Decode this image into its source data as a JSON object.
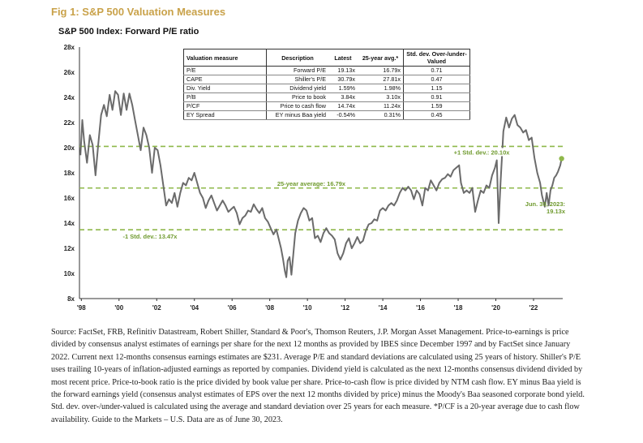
{
  "figure_title": "Fig 1: S&P 500 Valuation Measures",
  "chart_data": {
    "type": "line",
    "title": "S&P 500 Index: Forward P/E ratio",
    "xlabel": "",
    "ylabel": "",
    "x_tick_labels": [
      "'98",
      "'00",
      "'02",
      "'04",
      "'06",
      "'08",
      "'10",
      "'12",
      "'14",
      "'16",
      "'18",
      "'20",
      "'22"
    ],
    "y_tick_labels": [
      "8x",
      "10x",
      "12x",
      "14x",
      "16x",
      "18x",
      "20x",
      "22x",
      "24x",
      "26x",
      "28x"
    ],
    "ylim": [
      8,
      28
    ],
    "xlim": [
      1997.9,
      2023.55
    ],
    "grid": false,
    "series": [
      {
        "values": [
          [
            1997.95,
            19.4
          ],
          [
            1998.05,
            22.2
          ],
          [
            1998.15,
            20.5
          ],
          [
            1998.3,
            18.8
          ],
          [
            1998.45,
            21.0
          ],
          [
            1998.6,
            20.2
          ],
          [
            1998.75,
            17.8
          ],
          [
            1998.9,
            20.3
          ],
          [
            1999.05,
            22.6
          ],
          [
            1999.2,
            23.4
          ],
          [
            1999.35,
            22.5
          ],
          [
            1999.5,
            24.2
          ],
          [
            1999.65,
            23.0
          ],
          [
            1999.8,
            24.5
          ],
          [
            1999.95,
            24.2
          ],
          [
            2000.1,
            22.6
          ],
          [
            2000.25,
            24.3
          ],
          [
            2000.4,
            23.0
          ],
          [
            2000.55,
            24.3
          ],
          [
            2000.7,
            23.4
          ],
          [
            2000.85,
            22.2
          ],
          [
            2001.0,
            21.0
          ],
          [
            2001.15,
            19.8
          ],
          [
            2001.3,
            21.6
          ],
          [
            2001.45,
            21.0
          ],
          [
            2001.6,
            20.0
          ],
          [
            2001.75,
            18.0
          ],
          [
            2001.9,
            20.0
          ],
          [
            2002.05,
            19.8
          ],
          [
            2002.2,
            18.6
          ],
          [
            2002.35,
            17.0
          ],
          [
            2002.5,
            15.4
          ],
          [
            2002.65,
            15.9
          ],
          [
            2002.8,
            15.6
          ],
          [
            2002.95,
            16.4
          ],
          [
            2003.1,
            15.3
          ],
          [
            2003.25,
            16.4
          ],
          [
            2003.4,
            17.2
          ],
          [
            2003.55,
            17.0
          ],
          [
            2003.7,
            17.6
          ],
          [
            2003.85,
            17.4
          ],
          [
            2004.0,
            18.0
          ],
          [
            2004.15,
            17.2
          ],
          [
            2004.3,
            16.4
          ],
          [
            2004.45,
            16.0
          ],
          [
            2004.6,
            15.2
          ],
          [
            2004.75,
            15.8
          ],
          [
            2004.9,
            16.2
          ],
          [
            2005.05,
            15.6
          ],
          [
            2005.2,
            15.0
          ],
          [
            2005.35,
            15.4
          ],
          [
            2005.5,
            15.8
          ],
          [
            2005.65,
            15.4
          ],
          [
            2005.8,
            14.9
          ],
          [
            2005.95,
            15.1
          ],
          [
            2006.1,
            15.3
          ],
          [
            2006.25,
            14.8
          ],
          [
            2006.4,
            13.9
          ],
          [
            2006.55,
            14.4
          ],
          [
            2006.7,
            14.6
          ],
          [
            2006.85,
            15.0
          ],
          [
            2007.0,
            14.9
          ],
          [
            2007.15,
            15.5
          ],
          [
            2007.3,
            15.1
          ],
          [
            2007.45,
            14.8
          ],
          [
            2007.6,
            15.2
          ],
          [
            2007.75,
            14.4
          ],
          [
            2007.9,
            14.1
          ],
          [
            2008.05,
            13.6
          ],
          [
            2008.2,
            13.1
          ],
          [
            2008.35,
            13.5
          ],
          [
            2008.5,
            12.6
          ],
          [
            2008.6,
            12.0
          ],
          [
            2008.7,
            11.2
          ],
          [
            2008.8,
            10.2
          ],
          [
            2008.88,
            9.7
          ],
          [
            2008.95,
            11.0
          ],
          [
            2009.05,
            11.3
          ],
          [
            2009.15,
            9.9
          ],
          [
            2009.25,
            11.5
          ],
          [
            2009.35,
            13.2
          ],
          [
            2009.5,
            14.2
          ],
          [
            2009.65,
            14.8
          ],
          [
            2009.8,
            15.2
          ],
          [
            2009.95,
            15.0
          ],
          [
            2010.1,
            14.2
          ],
          [
            2010.25,
            14.4
          ],
          [
            2010.4,
            12.8
          ],
          [
            2010.55,
            13.0
          ],
          [
            2010.7,
            12.5
          ],
          [
            2010.85,
            13.2
          ],
          [
            2011.0,
            13.6
          ],
          [
            2011.15,
            13.2
          ],
          [
            2011.3,
            13.0
          ],
          [
            2011.45,
            12.7
          ],
          [
            2011.6,
            11.6
          ],
          [
            2011.75,
            11.1
          ],
          [
            2011.9,
            11.6
          ],
          [
            2012.05,
            12.4
          ],
          [
            2012.2,
            12.8
          ],
          [
            2012.35,
            12.0
          ],
          [
            2012.5,
            12.4
          ],
          [
            2012.65,
            12.9
          ],
          [
            2012.8,
            12.4
          ],
          [
            2012.95,
            12.6
          ],
          [
            2013.1,
            13.4
          ],
          [
            2013.25,
            13.9
          ],
          [
            2013.4,
            14.0
          ],
          [
            2013.55,
            14.3
          ],
          [
            2013.7,
            14.2
          ],
          [
            2013.85,
            15.0
          ],
          [
            2014.0,
            15.2
          ],
          [
            2014.15,
            15.0
          ],
          [
            2014.3,
            15.4
          ],
          [
            2014.45,
            15.6
          ],
          [
            2014.6,
            15.4
          ],
          [
            2014.75,
            15.8
          ],
          [
            2014.9,
            16.4
          ],
          [
            2015.05,
            16.8
          ],
          [
            2015.2,
            16.6
          ],
          [
            2015.35,
            16.9
          ],
          [
            2015.5,
            16.6
          ],
          [
            2015.65,
            15.9
          ],
          [
            2015.8,
            16.6
          ],
          [
            2015.95,
            16.3
          ],
          [
            2016.1,
            15.4
          ],
          [
            2016.25,
            16.8
          ],
          [
            2016.4,
            16.6
          ],
          [
            2016.55,
            17.4
          ],
          [
            2016.7,
            17.0
          ],
          [
            2016.85,
            16.6
          ],
          [
            2017.0,
            17.2
          ],
          [
            2017.15,
            17.5
          ],
          [
            2017.3,
            17.6
          ],
          [
            2017.45,
            17.9
          ],
          [
            2017.6,
            17.7
          ],
          [
            2017.75,
            18.2
          ],
          [
            2017.9,
            18.4
          ],
          [
            2018.05,
            18.6
          ],
          [
            2018.15,
            17.2
          ],
          [
            2018.3,
            16.4
          ],
          [
            2018.45,
            16.6
          ],
          [
            2018.6,
            16.4
          ],
          [
            2018.75,
            16.8
          ],
          [
            2018.9,
            14.9
          ],
          [
            2019.05,
            15.8
          ],
          [
            2019.2,
            16.6
          ],
          [
            2019.35,
            16.4
          ],
          [
            2019.5,
            17.0
          ],
          [
            2019.65,
            16.8
          ],
          [
            2019.8,
            17.8
          ],
          [
            2019.95,
            18.4
          ],
          [
            2020.05,
            19.0
          ],
          [
            2020.15,
            14.0
          ],
          [
            2020.25,
            17.2
          ],
          [
            2020.4,
            21.3
          ],
          [
            2020.55,
            22.4
          ],
          [
            2020.7,
            21.6
          ],
          [
            2020.85,
            22.3
          ],
          [
            2021.0,
            22.6
          ],
          [
            2021.15,
            21.8
          ],
          [
            2021.3,
            21.6
          ],
          [
            2021.45,
            21.2
          ],
          [
            2021.6,
            21.4
          ],
          [
            2021.75,
            20.6
          ],
          [
            2021.9,
            20.8
          ],
          [
            2022.05,
            19.2
          ],
          [
            2022.2,
            18.0
          ],
          [
            2022.35,
            17.2
          ],
          [
            2022.45,
            16.2
          ],
          [
            2022.6,
            15.3
          ],
          [
            2022.7,
            16.4
          ],
          [
            2022.8,
            15.4
          ],
          [
            2022.9,
            16.6
          ],
          [
            2023.0,
            17.0
          ],
          [
            2023.1,
            17.6
          ],
          [
            2023.2,
            17.8
          ],
          [
            2023.3,
            18.1
          ],
          [
            2023.42,
            18.6
          ],
          [
            2023.49,
            19.13
          ]
        ]
      }
    ],
    "reference_lines": [
      {
        "value": 20.1,
        "label": "+1 Std. dev.: 20.10x"
      },
      {
        "value": 16.79,
        "label": "25-year average: 16.79x"
      },
      {
        "value": 13.47,
        "label": "-1 Std. dev.: 13.47x"
      }
    ],
    "end_point": {
      "x": 2023.49,
      "y": 19.13,
      "label_line1": "Jun. 30, 2023:",
      "label_line2": "19.13x"
    },
    "colors": {
      "line": "#6b6b6b",
      "reference": "#8fb84a",
      "label_green": "#6f9a2e",
      "title_gold": "#c9a24a"
    },
    "table": {
      "headers": [
        "Valuation measure",
        "Description",
        "Latest",
        "25-year avg.*",
        "Std. dev. Over-/under-Valued"
      ],
      "rows": [
        [
          "P/E",
          "Forward P/E",
          "19.13x",
          "16.79x",
          "0.71"
        ],
        [
          "CAPE",
          "Shiller's P/E",
          "30.79x",
          "27.81x",
          "0.47"
        ],
        [
          "Div. Yield",
          "Dividend yield",
          "1.59%",
          "1.98%",
          "1.15"
        ],
        [
          "P/B",
          "Price to book",
          "3.84x",
          "3.10x",
          "0.91"
        ],
        [
          "P/CF",
          "Price to cash flow",
          "14.74x",
          "11.24x",
          "1.59"
        ],
        [
          "EY Spread",
          "EY minus Baa yield",
          "-0.54%",
          "0.31%",
          "0.45"
        ]
      ]
    }
  },
  "source_text": "Source: FactSet, FRB, Refinitiv Datastream, Robert Shiller, Standard & Poor's, Thomson Reuters, J.P. Morgan Asset Management. Price-to-earnings is price divided by consensus analyst estimates of earnings per share for the next 12 months as provided by IBES since December 1997 and by FactSet since January 2022. Current next 12-months consensus earnings estimates are $231. Average P/E and standard deviations are calculated using 25 years of history. Shiller's P/E uses trailing 10-years of inflation-adjusted earnings as reported by companies. Dividend yield is calculated as the next 12-months consensus dividend divided by most recent price. Price-to-book ratio is the price divided by book value per share. Price-to-cash flow is price divided by NTM cash flow. EY minus Baa yield is the forward earnings yield (consensus analyst estimates of EPS over the next 12 months divided by price) minus the Moody's Baa seasoned corporate bond yield. Std. dev. over-/under-valued is calculated using the average and standard deviation over 25 years for each measure. *P/CF is a 20-year average due to cash flow availability. Guide to the Markets – U.S. Data are as of June 30, 2023."
}
